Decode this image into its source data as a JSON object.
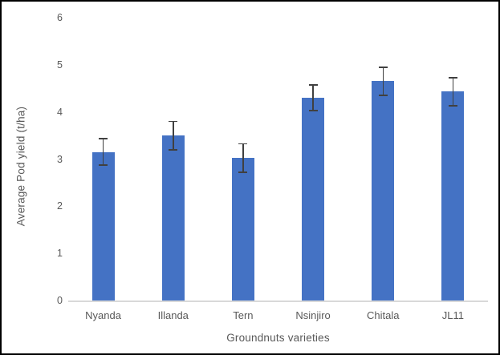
{
  "chart_data": {
    "type": "bar",
    "title": "",
    "xlabel": "Groundnuts varieties",
    "ylabel": "Average Pod yield (t/ha)",
    "categories": [
      "Nyanda",
      "Illanda",
      "Tern",
      "Nsinjiro",
      "Chitala",
      "JL11"
    ],
    "values": [
      3.15,
      3.5,
      3.02,
      4.3,
      4.65,
      4.43
    ],
    "error_bars": [
      0.28,
      0.3,
      0.3,
      0.27,
      0.3,
      0.3
    ],
    "ylim": [
      0,
      6
    ],
    "yticks": [
      0,
      1,
      2,
      3,
      4,
      5,
      6
    ],
    "grid": false,
    "legend_position": "none",
    "bar_color": "#4472C4",
    "error_bar_color": "#404040",
    "axis_line_color": "#D9D9D9",
    "label_color": "#595959",
    "background_color": "#FFFFFF",
    "border_color": "#000000"
  }
}
